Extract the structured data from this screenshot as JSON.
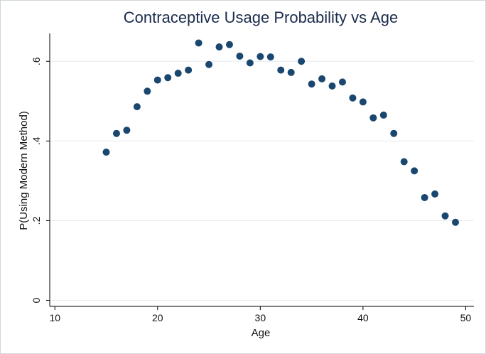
{
  "chart_data": {
    "type": "scatter",
    "title": "Contraceptive Usage Probability vs Age",
    "xlabel": "Age",
    "ylabel": "P(Using Modern Method)",
    "xlim": [
      9.5,
      50.8
    ],
    "ylim": [
      -0.015,
      0.67
    ],
    "xticks": [
      10,
      20,
      30,
      40,
      50
    ],
    "xtick_labels": [
      "10",
      "20",
      "30",
      "40",
      "50"
    ],
    "yticks": [
      0,
      0.2,
      0.4,
      0.6
    ],
    "ytick_labels": [
      "0",
      ".2",
      ".4",
      ".6"
    ],
    "grid": true,
    "marker_color": "#1a476f",
    "x": [
      15,
      16,
      17,
      18,
      19,
      20,
      21,
      22,
      23,
      24,
      25,
      26,
      27,
      28,
      29,
      30,
      31,
      32,
      33,
      34,
      35,
      36,
      37,
      38,
      39,
      40,
      41,
      42,
      43,
      44,
      45,
      46,
      47,
      48,
      49
    ],
    "y": [
      0.372,
      0.419,
      0.427,
      0.486,
      0.525,
      0.553,
      0.559,
      0.57,
      0.578,
      0.646,
      0.592,
      0.636,
      0.642,
      0.613,
      0.596,
      0.612,
      0.611,
      0.578,
      0.572,
      0.6,
      0.543,
      0.556,
      0.538,
      0.548,
      0.508,
      0.498,
      0.458,
      0.465,
      0.419,
      0.348,
      0.325,
      0.258,
      0.267,
      0.212,
      0.196
    ]
  }
}
